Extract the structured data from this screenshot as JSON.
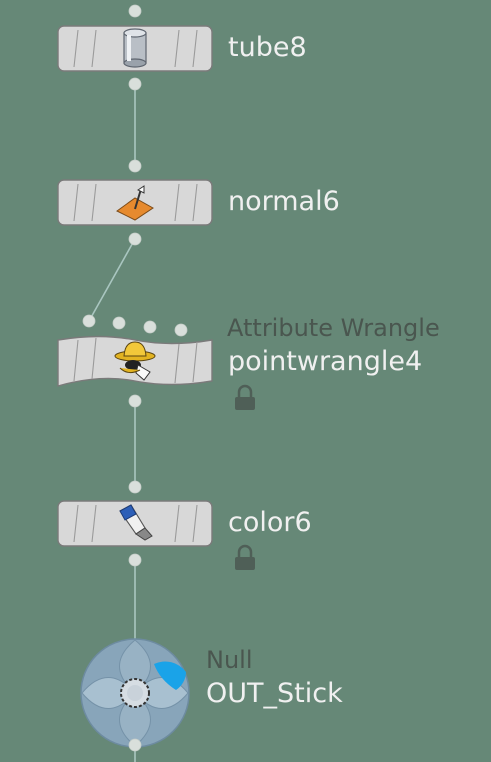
{
  "network": {
    "nodes": [
      {
        "id": "tube8",
        "name": "tube8",
        "icon": "cylinder-icon"
      },
      {
        "id": "normal6",
        "name": "normal6",
        "icon": "normal-vector-icon"
      },
      {
        "id": "pointwrangle4",
        "name": "pointwrangle4",
        "type_label": "Attribute Wrangle",
        "icon": "wrangler-cowboy-icon",
        "locked": true
      },
      {
        "id": "color6",
        "name": "color6",
        "icon": "paint-tube-icon",
        "locked": true
      },
      {
        "id": "out_stick",
        "name": "OUT_Stick",
        "type_label": "Null",
        "icon": "null-ring-icon",
        "display_flag": true
      }
    ],
    "colors": {
      "background": "#668877",
      "wire": "#a9c6c0",
      "node_fill": "#d8d8d8",
      "label": "#f0f0f0",
      "type_label": "#4a564f",
      "display_flag": "#1aa3e8",
      "null_body": "#88a5ba"
    }
  }
}
